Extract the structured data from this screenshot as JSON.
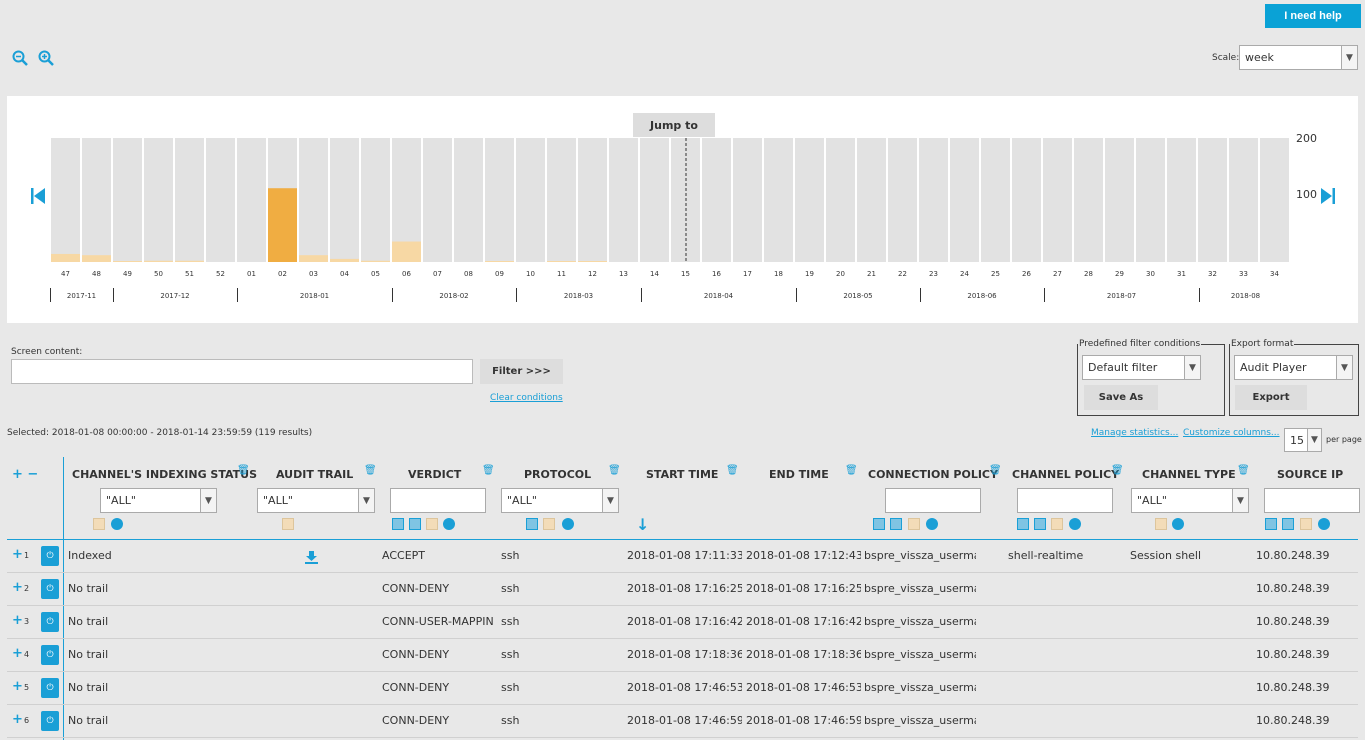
{
  "header": {
    "help_label": "I need help",
    "zoom_out_icon": "zoom-out-icon",
    "zoom_in_icon": "zoom-in-icon",
    "scale_label": "Scale:",
    "scale_value": "week"
  },
  "timeline": {
    "jump_label": "Jump to",
    "axis_max": "200",
    "axis_mid": "100",
    "weeks": [
      "47",
      "48",
      "49",
      "50",
      "51",
      "52",
      "01",
      "02",
      "03",
      "04",
      "05",
      "06",
      "07",
      "08",
      "09",
      "10",
      "11",
      "12",
      "13",
      "14",
      "15",
      "16",
      "17",
      "18",
      "19",
      "20",
      "21",
      "22",
      "23",
      "24",
      "25",
      "26",
      "27",
      "28",
      "29",
      "30",
      "31",
      "32",
      "33",
      "34"
    ],
    "months": [
      "2017-11",
      "2017-12",
      "2018-01",
      "2018-02",
      "2018-03",
      "2018-04",
      "2018-05",
      "2018-06",
      "2018-07",
      "2018-08"
    ],
    "counts": [
      13,
      11,
      1,
      2,
      2,
      0,
      0,
      119,
      11,
      5,
      2,
      33,
      0,
      0,
      1,
      0,
      1,
      1,
      0,
      0,
      0,
      0,
      0,
      0,
      0,
      0,
      0,
      0,
      0,
      0,
      0,
      0,
      0,
      0,
      0,
      0,
      0,
      0,
      0,
      0
    ],
    "selected_week": "02",
    "colors": {
      "bar": "#f7d8a4",
      "selected": "#f0ad42",
      "column": "#e2e2e2"
    }
  },
  "filter": {
    "screen_label": "Screen content:",
    "screen_value": "",
    "filter_button": "Filter >>>",
    "clear_link": "Clear conditions"
  },
  "predefined": {
    "legend": "Predefined filter conditions",
    "value": "Default filter",
    "save_as": "Save As"
  },
  "export": {
    "legend": "Export format",
    "value": "Audit Player",
    "button": "Export"
  },
  "selection": {
    "text": "Selected: 2018-01-08 00:00:00 - 2018-01-14 23:59:59 (119 results)",
    "manage_link": "Manage statistics...",
    "customize_link": "Customize columns...",
    "per_page_value": "15",
    "per_page_label": "per page"
  },
  "table": {
    "expand_label": "+ −",
    "columns": [
      "CHANNEL'S INDEXING STATUS",
      "AUDIT TRAIL",
      "VERDICT",
      "PROTOCOL",
      "START TIME",
      "END TIME",
      "CONNECTION POLICY",
      "CHANNEL POLICY",
      "CHANNEL TYPE",
      "SOURCE IP"
    ],
    "filters": {
      "indexing": "\"ALL\"",
      "audit": "\"ALL\"",
      "protocol": "\"ALL\"",
      "channel_type": "\"ALL\""
    },
    "rows": [
      {
        "n": "1",
        "status": "Indexed",
        "trail": true,
        "verdict": "ACCEPT",
        "protocol": "ssh",
        "start": "2018-01-08 17:11:33",
        "end": "2018-01-08 17:12:43",
        "conn_policy": "bspre_vissza_usermapp",
        "chan_policy": "shell-realtime",
        "chan_type": "Session shell",
        "src": "10.80.248.39"
      },
      {
        "n": "2",
        "status": "No trail",
        "trail": false,
        "verdict": "CONN-DENY",
        "protocol": "ssh",
        "start": "2018-01-08 17:16:25",
        "end": "2018-01-08 17:16:25",
        "conn_policy": "bspre_vissza_usermapp",
        "chan_policy": "",
        "chan_type": "",
        "src": "10.80.248.39"
      },
      {
        "n": "3",
        "status": "No trail",
        "trail": false,
        "verdict": "CONN-USER-MAPPIN",
        "protocol": "ssh",
        "start": "2018-01-08 17:16:42",
        "end": "2018-01-08 17:16:42",
        "conn_policy": "bspre_vissza_usermapp",
        "chan_policy": "",
        "chan_type": "",
        "src": "10.80.248.39"
      },
      {
        "n": "4",
        "status": "No trail",
        "trail": false,
        "verdict": "CONN-DENY",
        "protocol": "ssh",
        "start": "2018-01-08 17:18:36",
        "end": "2018-01-08 17:18:36",
        "conn_policy": "bspre_vissza_usermapp",
        "chan_policy": "",
        "chan_type": "",
        "src": "10.80.248.39"
      },
      {
        "n": "5",
        "status": "No trail",
        "trail": false,
        "verdict": "CONN-DENY",
        "protocol": "ssh",
        "start": "2018-01-08 17:46:53",
        "end": "2018-01-08 17:46:53",
        "conn_policy": "bspre_vissza_usermapp",
        "chan_policy": "",
        "chan_type": "",
        "src": "10.80.248.39"
      },
      {
        "n": "6",
        "status": "No trail",
        "trail": false,
        "verdict": "CONN-DENY",
        "protocol": "ssh",
        "start": "2018-01-08 17:46:59",
        "end": "2018-01-08 17:46:59",
        "conn_policy": "bspre_vissza_usermapp",
        "chan_policy": "",
        "chan_type": "",
        "src": "10.80.248.39"
      }
    ]
  },
  "colors": {
    "accent": "#1a9fd6",
    "help": "#0aa2d6"
  }
}
